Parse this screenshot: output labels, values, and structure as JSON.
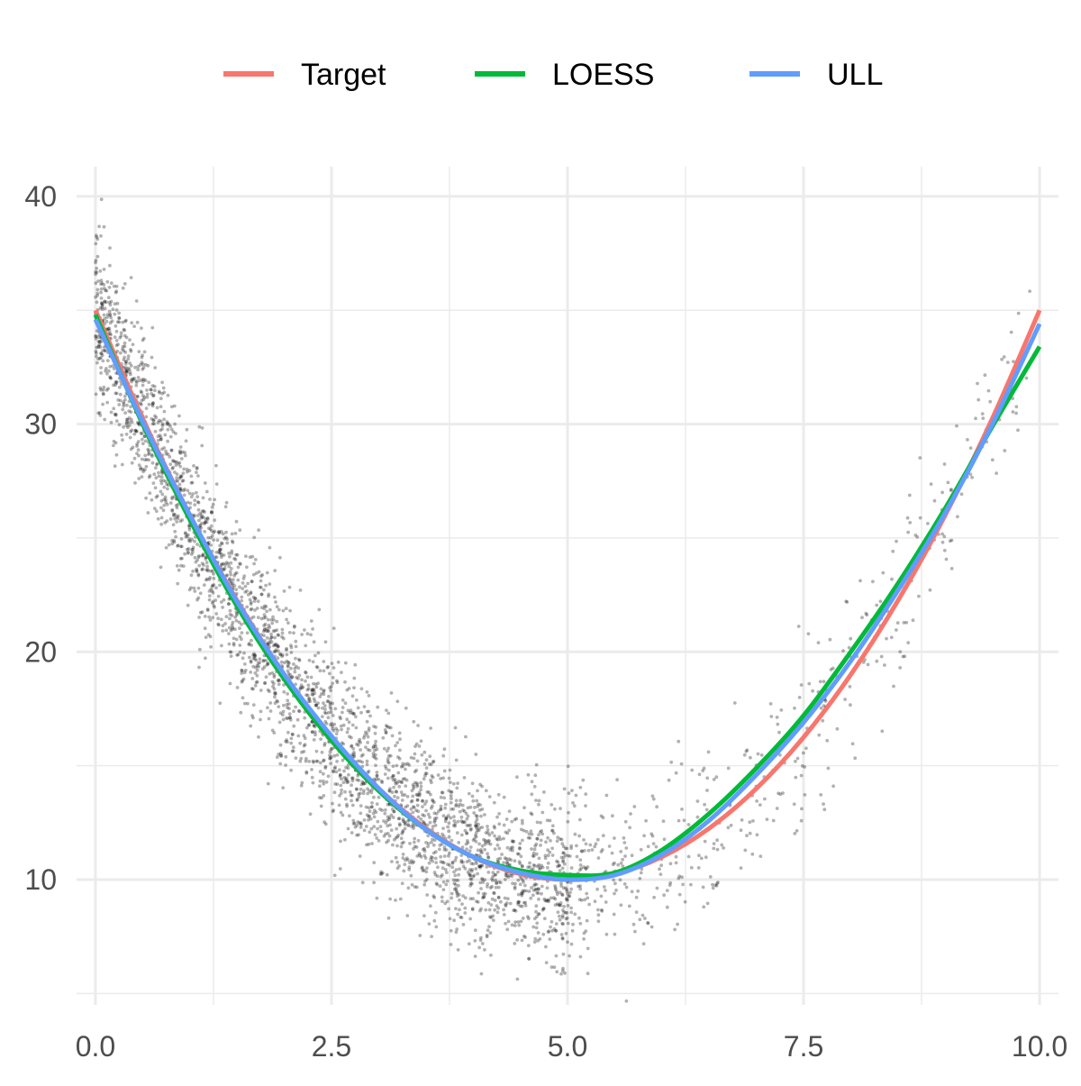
{
  "chart_data": {
    "type": "scatter",
    "title": "",
    "xlabel": "",
    "ylabel": "",
    "xlim": [
      -0.2,
      10.2
    ],
    "ylim": [
      4.5,
      41.3
    ],
    "x_ticks": [
      0,
      2.5,
      5,
      7.5,
      10
    ],
    "x_tick_labels": [
      "0.0",
      "2.5",
      "5.0",
      "7.5",
      "10.0"
    ],
    "x_minor_ticks": [
      1.25,
      3.75,
      6.25,
      8.75
    ],
    "y_ticks": [
      10,
      20,
      30,
      40
    ],
    "y_tick_labels": [
      "10",
      "20",
      "30",
      "40"
    ],
    "y_minor_ticks": [
      5,
      15,
      25,
      35
    ],
    "grid": true,
    "legend_position": "top",
    "points": {
      "description": "noisy observations around the target curve",
      "x_range": [
        0,
        10
      ],
      "y_range": [
        5.5,
        39.0
      ],
      "color": "#000000",
      "dense_region_x": [
        0,
        5
      ],
      "sparse_region_x": [
        5,
        10
      ]
    },
    "series": [
      {
        "name": "Target",
        "color": "#F8766D",
        "x": [
          0,
          0.5,
          1,
          1.5,
          2,
          2.5,
          3,
          3.5,
          4,
          4.5,
          5,
          5.5,
          6,
          6.5,
          7,
          7.5,
          8,
          8.5,
          9,
          9.5,
          10
        ],
        "y": [
          35.0,
          30.25,
          26.0,
          22.25,
          19.0,
          16.25,
          14.0,
          12.25,
          11.0,
          10.25,
          10.0,
          10.25,
          11.0,
          12.25,
          14.0,
          16.25,
          19.0,
          22.25,
          26.0,
          30.25,
          35.0
        ]
      },
      {
        "name": "LOESS",
        "color": "#00BA38",
        "x": [
          0,
          0.5,
          1,
          1.5,
          2,
          2.5,
          3,
          3.5,
          4,
          4.5,
          5,
          5.5,
          6,
          6.5,
          7,
          7.5,
          8,
          8.5,
          9,
          9.5,
          10
        ],
        "y": [
          34.8,
          30.0,
          25.8,
          22.0,
          18.8,
          16.1,
          13.9,
          12.2,
          11.0,
          10.4,
          10.2,
          10.3,
          11.3,
          12.9,
          14.9,
          17.2,
          20.0,
          23.0,
          26.3,
          29.9,
          33.4
        ]
      },
      {
        "name": "ULL",
        "color": "#619CFF",
        "x": [
          0,
          0.5,
          1,
          1.5,
          2,
          2.5,
          3,
          3.5,
          4,
          4.5,
          5,
          5.5,
          6,
          6.5,
          7,
          7.5,
          8,
          8.5,
          9,
          9.5,
          10
        ],
        "y": [
          34.6,
          30.1,
          26.0,
          22.2,
          19.0,
          16.3,
          14.0,
          12.2,
          11.0,
          10.3,
          10.0,
          10.2,
          11.1,
          12.6,
          14.6,
          16.9,
          19.6,
          22.7,
          26.1,
          30.0,
          34.4
        ]
      }
    ]
  }
}
